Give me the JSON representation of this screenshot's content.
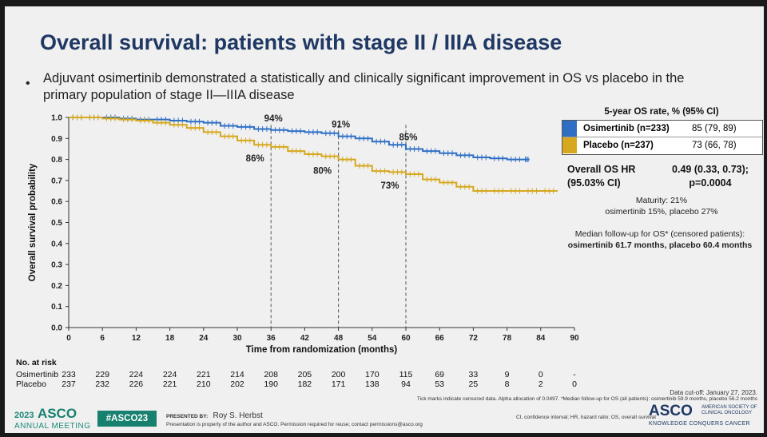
{
  "slide": {
    "title": "Overall survival: patients with stage II / IIIA disease",
    "bullet": "Adjuvant osimertinib demonstrated a statistically and clinically significant improvement in OS vs placebo in the primary population of stage II—IIIA disease"
  },
  "colors": {
    "osimertinib": "#2e6fc4",
    "placebo": "#d6a820",
    "title": "#1f3864",
    "asco": "#17806f"
  },
  "chart_data": {
    "type": "line",
    "title": "Overall survival (Kaplan-Meier)",
    "xlabel": "Time from randomization (months)",
    "ylabel": "Overall survival probability",
    "xlim": [
      0,
      90
    ],
    "ylim": [
      0,
      1.0
    ],
    "xticks": [
      0,
      6,
      12,
      18,
      24,
      30,
      36,
      42,
      48,
      54,
      60,
      66,
      72,
      78,
      84,
      90
    ],
    "yticks": [
      "0.0",
      "0.1",
      "0.2",
      "0.3",
      "0.4",
      "0.5",
      "0.6",
      "0.7",
      "0.8",
      "0.9",
      "1.0"
    ],
    "reference_lines_x": [
      36,
      48,
      60
    ],
    "series": [
      {
        "name": "Osimertinib",
        "x": [
          0,
          3,
          6,
          9,
          12,
          15,
          18,
          21,
          24,
          27,
          30,
          33,
          36,
          39,
          42,
          45,
          48,
          51,
          54,
          57,
          60,
          63,
          66,
          69,
          72,
          75,
          78,
          81,
          82
        ],
        "y": [
          1.0,
          1.0,
          1.0,
          0.995,
          0.99,
          0.99,
          0.985,
          0.98,
          0.975,
          0.96,
          0.955,
          0.945,
          0.94,
          0.935,
          0.93,
          0.925,
          0.91,
          0.9,
          0.885,
          0.87,
          0.85,
          0.84,
          0.83,
          0.82,
          0.81,
          0.805,
          0.8,
          0.8,
          0.8
        ]
      },
      {
        "name": "Placebo",
        "x": [
          0,
          3,
          6,
          9,
          12,
          15,
          18,
          21,
          24,
          27,
          30,
          33,
          36,
          39,
          42,
          45,
          48,
          51,
          54,
          57,
          60,
          63,
          66,
          69,
          72,
          75,
          78,
          81,
          84,
          87
        ],
        "y": [
          1.0,
          1.0,
          0.995,
          0.99,
          0.985,
          0.975,
          0.965,
          0.95,
          0.93,
          0.91,
          0.89,
          0.87,
          0.86,
          0.84,
          0.825,
          0.815,
          0.8,
          0.77,
          0.745,
          0.74,
          0.73,
          0.705,
          0.69,
          0.67,
          0.65,
          0.65,
          0.65,
          0.65,
          0.65,
          0.65
        ]
      }
    ],
    "annotations": [
      {
        "text": "94%",
        "x": 36,
        "y": 0.94,
        "series": "Osimertinib"
      },
      {
        "text": "91%",
        "x": 48,
        "y": 0.91,
        "series": "Osimertinib"
      },
      {
        "text": "85%",
        "x": 60,
        "y": 0.85,
        "series": "Osimertinib"
      },
      {
        "text": "86%",
        "x": 36,
        "y": 0.86,
        "series": "Placebo"
      },
      {
        "text": "80%",
        "x": 48,
        "y": 0.8,
        "series": "Placebo"
      },
      {
        "text": "73%",
        "x": 60,
        "y": 0.73,
        "series": "Placebo"
      }
    ]
  },
  "risk": {
    "header": "No. at risk",
    "months": [
      0,
      6,
      12,
      18,
      24,
      30,
      36,
      42,
      48,
      54,
      60,
      66,
      72,
      78,
      84,
      90
    ],
    "rows": [
      {
        "label": "Osimertinib",
        "values": [
          "233",
          "229",
          "224",
          "224",
          "221",
          "214",
          "208",
          "205",
          "200",
          "170",
          "115",
          "69",
          "33",
          "9",
          "0",
          "-"
        ]
      },
      {
        "label": "Placebo",
        "values": [
          "237",
          "232",
          "226",
          "221",
          "210",
          "202",
          "190",
          "182",
          "171",
          "138",
          "94",
          "53",
          "25",
          "8",
          "2",
          "0"
        ]
      }
    ]
  },
  "table": {
    "header": "5-year OS rate, % (95% CI)",
    "rows": [
      {
        "label": "Osimertinib (n=233)",
        "value": "85 (79, 89)"
      },
      {
        "label": "Placebo (n=237)",
        "value": "73 (66, 78)"
      }
    ]
  },
  "hr": {
    "label_line1": "Overall OS HR",
    "label_line2": "(95.03% CI)",
    "value_line1": "0.49 (0.33, 0.73);",
    "value_line2": "p=0.0004"
  },
  "notes": {
    "maturity_line1": "Maturity: 21%",
    "maturity_line2": "osimertinib 15%, placebo 27%",
    "followup_line1": "Median follow-up for OS* (censored patients):",
    "followup_line2": "osimertinib 61.7 months, placebo 60.4 months"
  },
  "footer": {
    "cutoff": "Data cut-off: January 27, 2023.",
    "ticks_note": "Tick marks indicate censored data. Alpha allocation of 0.0497. *Median follow-up for OS (all patients): osimertinib 59.9 months, placebo 56.2 months",
    "abbrev": "CI, confidence interval; HR, hazard ratio; OS, overall survival",
    "presented_by_label": "PRESENTED BY:",
    "presenter": "Roy S. Herbst",
    "property": "Presentation is property of the author and ASCO. Permission required for reuse; contact permissions@asco.org",
    "meeting_year": "2023",
    "meeting_brand": "ASCO",
    "meeting_name": "ANNUAL MEETING",
    "hashtag": "#ASCO23",
    "asco_logo": "ASCO",
    "asco_org_line1": "AMERICAN SOCIETY OF",
    "asco_org_line2": "CLINICAL ONCOLOGY",
    "asco_tagline": "KNOWLEDGE CONQUERS CANCER"
  }
}
